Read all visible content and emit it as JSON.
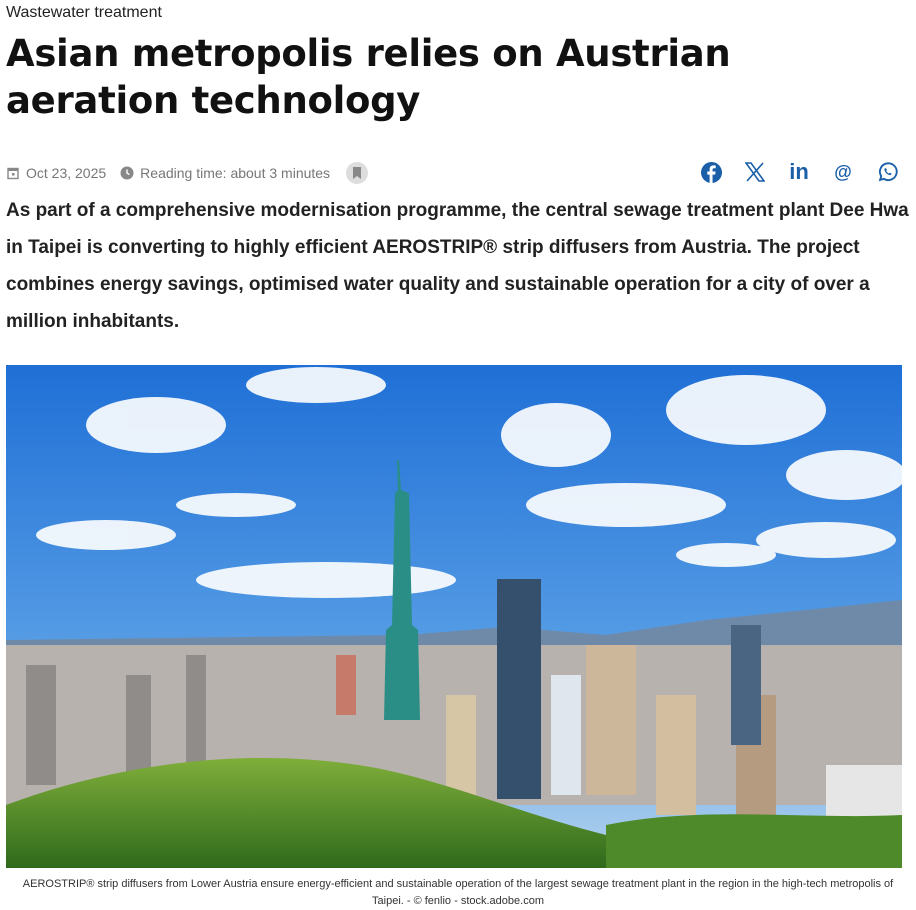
{
  "kicker": "Wastewater treatment",
  "title": "Asian metropolis relies on Austrian aeration technology",
  "meta": {
    "date": "Oct 23, 2025",
    "reading_time": "Reading time: about 3 minutes",
    "icons": [
      "calendar-icon",
      "clock-icon",
      "bookmark-icon"
    ]
  },
  "share": {
    "icons": [
      "facebook-icon",
      "x-icon",
      "linkedin-icon",
      "email-at-icon",
      "whatsapp-icon"
    ],
    "color": "#1a5fa8",
    "linkedin": "in",
    "at": "@"
  },
  "lead": "As part of a comprehensive modernisation programme, the central sewage treatment plant Dee Hwa in Taipei is converting to highly efficient AEROSTRIP® strip diffusers from Austria. The project combines energy savings, optimised water quality and sustainable operation for a city of over a million inhabitants.",
  "image": {
    "alt": "Taipei skyline with Taipei 101 under blue sky"
  },
  "caption": "AEROSTRIP® strip diffusers from Lower Austria ensure energy-efficient and sustainable operation of the largest sewage treatment plant in the region in the high-tech metropolis of Taipei.  - © fenlio - stock.adobe.com"
}
